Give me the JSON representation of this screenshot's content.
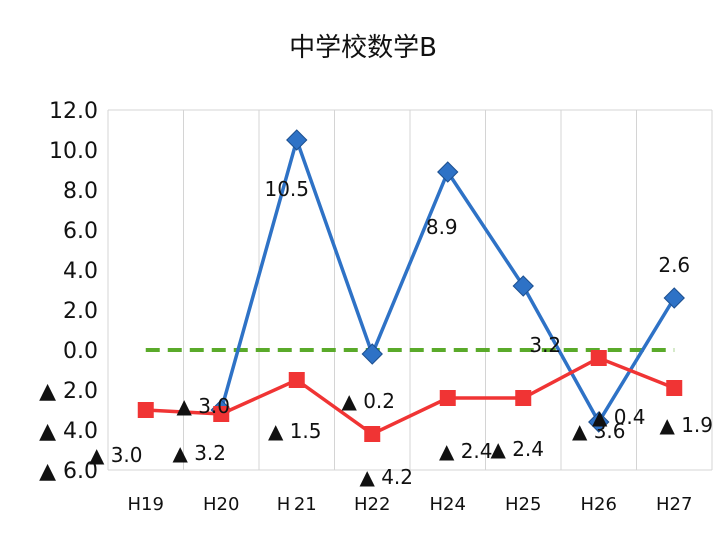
{
  "chart_data": {
    "type": "line",
    "title": "中学校数学B",
    "xlabel": "",
    "ylabel": "",
    "categories": [
      "H19",
      "H20",
      "H 21",
      "H22",
      "H24",
      "H25",
      "H26",
      "H27"
    ],
    "y_tick_labels": [
      "▲ 6.0",
      "▲ 4.0",
      "▲ 2.0",
      "0.0",
      "2.0",
      "4.0",
      "6.0",
      "8.0",
      "10.0",
      "12.0"
    ],
    "y_ticks": [
      -6,
      -4,
      -2,
      0,
      2,
      4,
      6,
      8,
      10,
      12
    ],
    "ylim": [
      -6,
      12
    ],
    "grid": "vertical",
    "legend": "none",
    "zero_line": {
      "value": 0,
      "color": "#5aaa2a",
      "style": "dashed"
    },
    "series": [
      {
        "color": "#2e72c6",
        "marker": "diamond",
        "values": [
          null,
          -3.0,
          10.5,
          -0.2,
          8.9,
          3.2,
          -3.6,
          2.6
        ],
        "point_labels": [
          null,
          "▲ 3.0",
          "10.5",
          "▲ 0.2",
          "8.9",
          "3.2",
          "▲ 3.6",
          "2.6"
        ]
      },
      {
        "color": "#f03434",
        "marker": "square",
        "values": [
          -3.0,
          -3.2,
          -1.5,
          -4.2,
          -2.4,
          -2.4,
          -0.4,
          -1.9
        ],
        "point_labels": [
          "▲ 3.0",
          "▲ 3.2",
          "▲ 1.5",
          "▲ 4.2",
          "▲ 2.4",
          "▲ 2.4",
          "▲ 0.4",
          "▲ 1.9"
        ]
      }
    ]
  }
}
